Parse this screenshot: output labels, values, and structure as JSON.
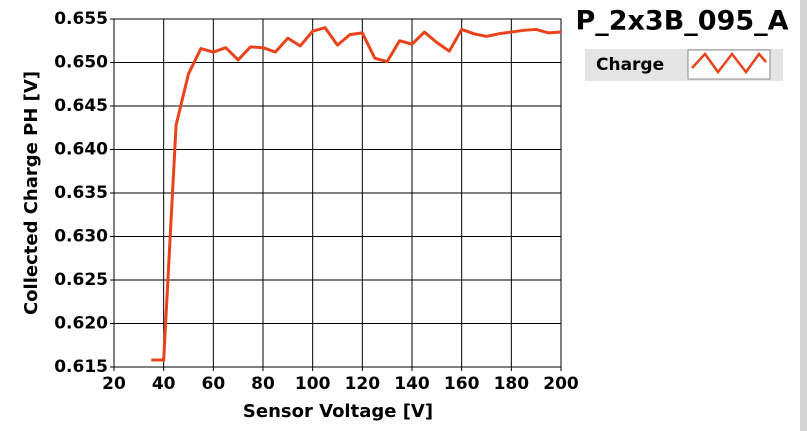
{
  "chart_data": {
    "type": "line",
    "title": "P_2x3B_095_A",
    "x_label": "Sensor Voltage [V]",
    "y_label": "Collected Charge PH [V]",
    "xlim": [
      20,
      200
    ],
    "xticks": [
      20,
      40,
      60,
      80,
      100,
      120,
      140,
      160,
      180,
      200
    ],
    "ylim": [
      0.615,
      0.655
    ],
    "yticks": [
      0.615,
      {
        "value": 0.62,
        "label": "0.620"
      },
      0.625,
      {
        "value": 0.63,
        "label": "0.630"
      },
      0.635,
      {
        "value": 0.64,
        "label": "0.640"
      },
      0.645,
      {
        "value": 0.65,
        "label": "0.650"
      },
      0.655
    ],
    "grid": true,
    "legend": "right",
    "x": [
      35,
      40,
      45,
      50,
      55,
      60,
      65,
      70,
      75,
      80,
      85,
      90,
      95,
      100,
      105,
      110,
      115,
      120,
      125,
      130,
      135,
      140,
      145,
      150,
      155,
      160,
      165,
      170,
      175,
      180,
      185,
      190,
      195,
      200
    ],
    "series": [
      {
        "name": "Charge",
        "color": "#e8431a",
        "values": [
          0.6158,
          0.6158,
          0.6428,
          0.6487,
          0.6516,
          0.6512,
          0.6517,
          0.6503,
          0.6518,
          0.6517,
          0.6512,
          0.6528,
          0.6519,
          0.6536,
          0.654,
          0.652,
          0.6532,
          0.6534,
          0.6505,
          0.6501,
          0.6525,
          0.6521,
          0.6535,
          0.6523,
          0.6513,
          0.6538,
          0.6533,
          0.653,
          0.6533,
          0.6535,
          0.6537,
          0.6538,
          0.6534,
          0.6535
        ]
      }
    ]
  }
}
